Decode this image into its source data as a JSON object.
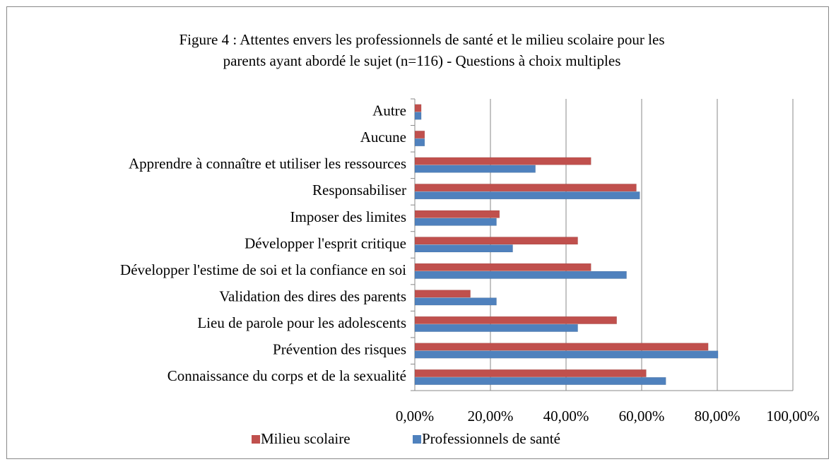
{
  "chart_data": {
    "type": "hbar",
    "title": "Figure 4 : Attentes envers les professionnels de santé et le milieu scolaire pour les",
    "subtitle": "parents ayant abordé le sujet (n=116) - Questions à choix multiples",
    "categories": [
      "Autre",
      "Aucune",
      "Apprendre à connaître et utiliser les ressources",
      "Responsabiliser",
      "Imposer des limites",
      "Développer l'esprit critique",
      "Développer l'estime de soi et la confiance en soi",
      "Validation des dires des parents",
      "Lieu de parole pour les adolescents",
      "Prévention des risques",
      "Connaissance du corps et de la sexualité"
    ],
    "series": [
      {
        "name": "Milieu scolaire",
        "color": "#c0504d",
        "values": [
          1.7,
          2.6,
          46.6,
          58.6,
          22.4,
          43.1,
          46.6,
          14.7,
          53.4,
          77.6,
          61.2
        ]
      },
      {
        "name": "Professionnels de santé",
        "color": "#4f81bd",
        "values": [
          1.7,
          2.6,
          31.9,
          59.5,
          21.6,
          25.9,
          56.0,
          21.6,
          43.1,
          80.2,
          66.4
        ]
      }
    ],
    "xlim": [
      0,
      100
    ],
    "xticks": [
      {
        "value": 0,
        "label": "0,00%"
      },
      {
        "value": 20,
        "label": "20,00%"
      },
      {
        "value": 40,
        "label": "40,00%"
      },
      {
        "value": 60,
        "label": "60,00%"
      },
      {
        "value": 80,
        "label": "80,00%"
      },
      {
        "value": 100,
        "label": "100,00%"
      }
    ],
    "grid": true,
    "legend": "bottom"
  }
}
